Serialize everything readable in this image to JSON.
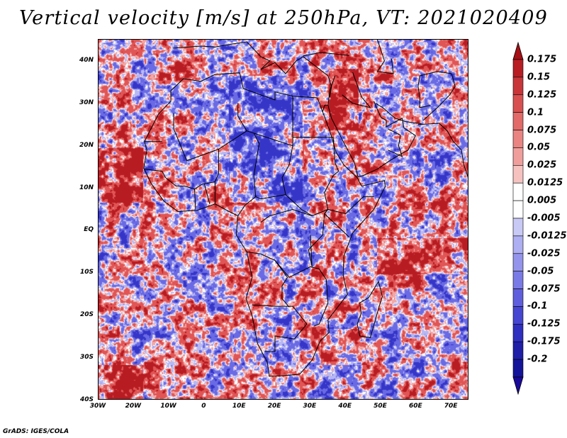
{
  "title": "Vertical velocity [m/s] at 250hPa, VT: 2021020409",
  "footer": "GrADS: IGES/COLA",
  "map": {
    "region": "Africa and surrounding oceans",
    "lon_range": [
      -30,
      75
    ],
    "lat_range": [
      -40,
      45
    ],
    "lat_labels": [
      "40N",
      "30N",
      "20N",
      "10N",
      "EQ",
      "10S",
      "20S",
      "30S",
      "40S"
    ],
    "lat_values": [
      40,
      30,
      20,
      10,
      0,
      -10,
      -20,
      -30,
      -40
    ],
    "lon_labels": [
      "30W",
      "20W",
      "10W",
      "0",
      "10E",
      "20E",
      "30E",
      "40E",
      "50E",
      "60E",
      "70E"
    ],
    "lon_values": [
      -30,
      -20,
      -10,
      0,
      10,
      20,
      30,
      40,
      50,
      60,
      70
    ]
  },
  "colorbar": {
    "labels": [
      "0.175",
      "0.15",
      "0.125",
      "0.1",
      "0.075",
      "0.05",
      "0.025",
      "0.0125",
      "0.005",
      "-0.005",
      "-0.0125",
      "-0.025",
      "-0.05",
      "-0.075",
      "-0.1",
      "-0.125",
      "-0.175",
      "-0.2"
    ],
    "colors": [
      "#a50f15",
      "#b81d24",
      "#c8363a",
      "#d95050",
      "#e26a68",
      "#ea8482",
      "#f09e9c",
      "#f6c2c0",
      "#ffffff",
      "#ffffff",
      "#c9c9f6",
      "#aeaef2",
      "#9494ec",
      "#7a7ae6",
      "#5f5fdd",
      "#4646d2",
      "#2f2fc0",
      "#1f1fa8",
      "#14149a"
    ],
    "top_arrow_color": "#a50f15",
    "bottom_arrow_color": "#1a0a9a"
  }
}
